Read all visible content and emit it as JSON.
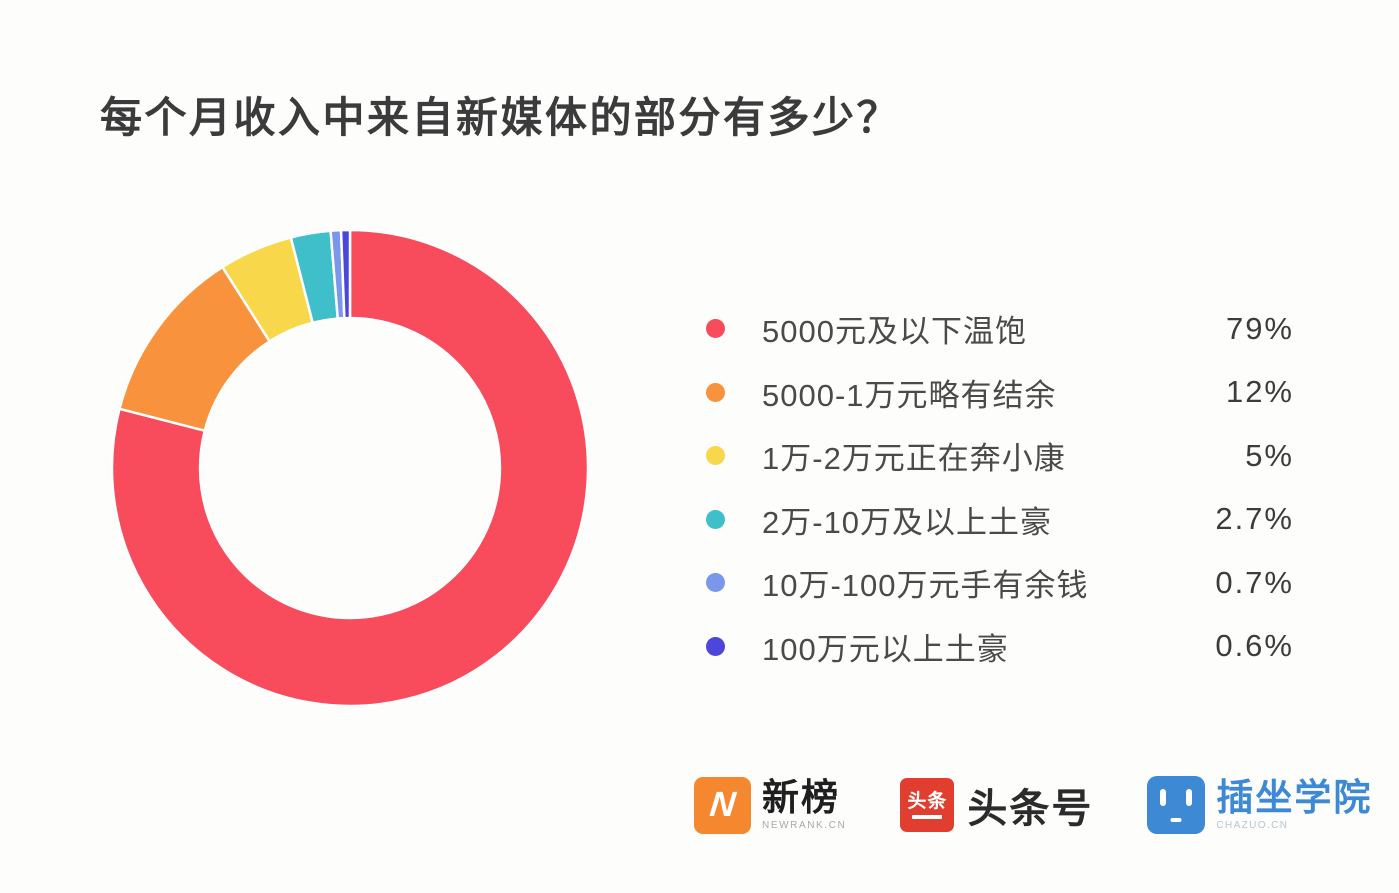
{
  "title": "每个月收入中来自新媒体的部分有多少？",
  "chart_data": {
    "type": "pie",
    "subtype": "donut",
    "title": "每个月收入中来自新媒体的部分有多少？",
    "categories": [
      "5000元及以下温饱",
      "5000-1万元略有结余",
      "1万-2万元正在奔小康",
      "2万-10万及以上土豪",
      "10万-100万元手有余钱",
      "100万元以上土豪"
    ],
    "values": [
      79,
      12,
      5,
      2.7,
      0.7,
      0.6
    ],
    "value_labels": [
      "79%",
      "12%",
      "5%",
      "2.7%",
      "0.7%",
      "0.6%"
    ],
    "colors": [
      "#F84B5C",
      "#F9923C",
      "#F8D74B",
      "#3EBFC9",
      "#7B97EB",
      "#4C46DA"
    ],
    "start_angle_deg": -90,
    "direction": "clockwise",
    "inner_radius_ratio": 0.63,
    "slice_gap_color": "#FFFFFF",
    "legend_position": "right"
  },
  "footer": {
    "newrank": {
      "badge": "N",
      "name": "新榜",
      "caption": "NEWRANK.CN",
      "color": "#F5882E"
    },
    "toutiao": {
      "badge": "头条",
      "name": "头条号",
      "color": "#E23E2F"
    },
    "chazuo": {
      "name": "插坐学院",
      "caption": "CHAZUO.CN",
      "color": "#3E89D4"
    }
  }
}
